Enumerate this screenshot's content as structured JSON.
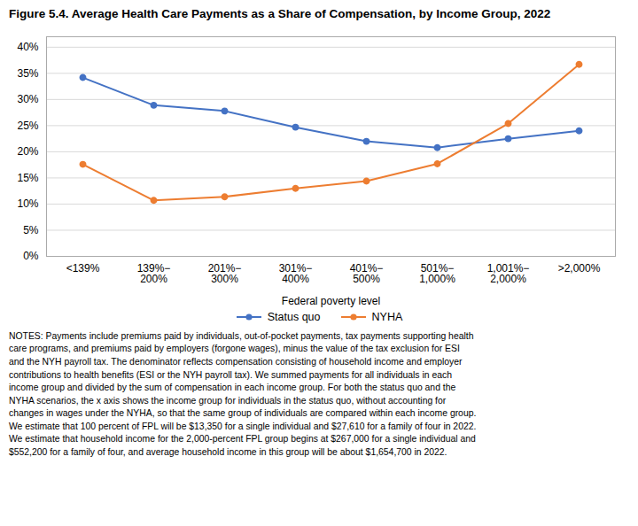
{
  "chart_data": {
    "type": "line",
    "title": "Figure 5.4. Average Health Care Payments as a Share of Compensation, by Income Group, 2022",
    "categories": [
      "<139%",
      "139%−\n200%",
      "201%−\n300%",
      "301%−\n400%",
      "401%−\n500%",
      "501%−\n1,000%",
      "1,001%−\n2,000%",
      ">2,000%"
    ],
    "series": [
      {
        "name": "Status quo",
        "color": "#4472C4",
        "values": [
          0.342,
          0.289,
          0.278,
          0.247,
          0.22,
          0.208,
          0.225,
          0.24
        ]
      },
      {
        "name": "NYHA",
        "color": "#ED7D31",
        "values": [
          0.176,
          0.107,
          0.114,
          0.13,
          0.144,
          0.177,
          0.254,
          0.367
        ]
      }
    ],
    "xlabel": "Federal poverty level",
    "ylim": [
      0,
      0.42
    ],
    "yticks": [
      {
        "value": 0.0,
        "label": "0%"
      },
      {
        "value": 0.05,
        "label": "5%"
      },
      {
        "value": 0.1,
        "label": "10%"
      },
      {
        "value": 0.15,
        "label": "15%"
      },
      {
        "value": 0.2,
        "label": "20%"
      },
      {
        "value": 0.25,
        "label": "25%"
      },
      {
        "value": 0.3,
        "label": "30%"
      },
      {
        "value": 0.35,
        "label": "35%"
      },
      {
        "value": 0.4,
        "label": "40%"
      }
    ],
    "grid": true,
    "legend": "bottom",
    "marker": "circle",
    "notes": "NOTES: Payments include premiums paid by individuals, out-of-pocket payments, tax payments supporting health\ncare programs, and premiums paid by employers (forgone wages), minus the value of the tax exclusion for ESI\nand the NYH payroll tax. The denominator reflects compensation consisting of household income and employer\ncontributions to health benefits (ESI or the NYH payroll tax). We summed payments for all individuals in each\nincome group and divided by the sum of compensation in each income group. For both the status quo and the\nNYHA scenarios, the x axis shows the income group for individuals in the status quo, without accounting for\nchanges in wages under the NYHA, so that the same group of individuals are compared within each income group.\nWe estimate that 100 percent of FPL will be $13,350 for a single individual and $27,610 for a family of four in 2022.\nWe estimate that household income for the 2,000-percent FPL group begins at $267,000 for a single individual and\n$552,200 for a family of four, and average household income in this group will be about $1,654,700 in 2022."
  }
}
